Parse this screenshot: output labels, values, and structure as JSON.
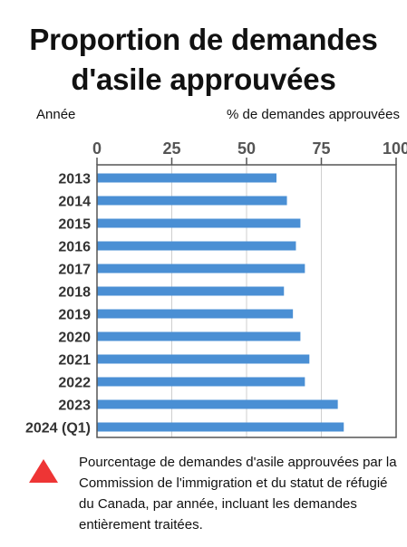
{
  "title_line1": "Proportion de demandes",
  "title_line2": "d'asile approuvées",
  "note": "Pourcentage de demandes d'asile approuvées par la Commission de l'immigration et du statut de réfugié du Canada, par année, incluant les demandes entièrement traitées.",
  "colors": {
    "bar": "#4a8fd4",
    "grid": "#cfcfcf",
    "axis": "#555555",
    "icon": "#ee3535"
  },
  "chart_data": {
    "type": "bar",
    "orientation": "horizontal",
    "title": "Proportion de demandes d'asile approuvées",
    "ylabel": "Année",
    "xlabel": "% de demandes approuvées",
    "xlim": [
      0,
      100
    ],
    "xticks": [
      0,
      25,
      50,
      75,
      100
    ],
    "grid": true,
    "categories": [
      "2013",
      "2014",
      "2015",
      "2016",
      "2017",
      "2018",
      "2019",
      "2020",
      "2021",
      "2022",
      "2023",
      "2024 (Q1)"
    ],
    "values": [
      60,
      63.5,
      68,
      66.5,
      69.5,
      62.5,
      65.5,
      68,
      71,
      69.5,
      80.5,
      82.5
    ]
  }
}
